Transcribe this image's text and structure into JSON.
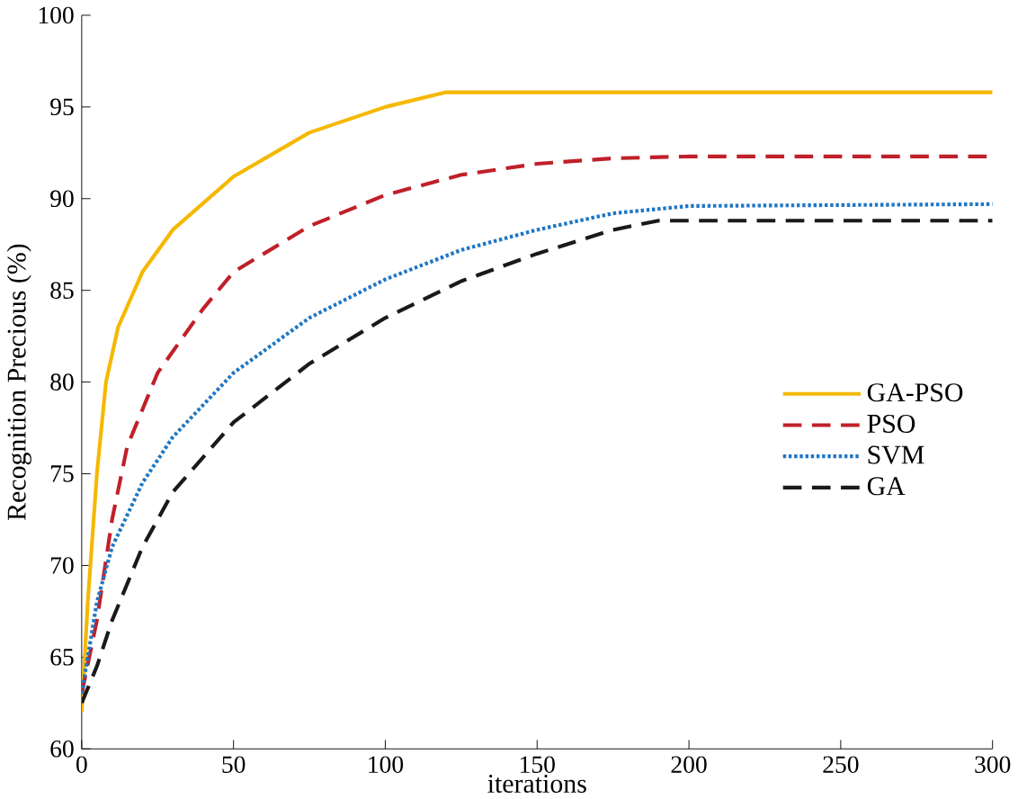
{
  "chart_data": {
    "type": "line",
    "xlabel": "iterations",
    "ylabel": "Recognition Precious (%)",
    "xlim": [
      0,
      300
    ],
    "ylim": [
      60,
      100
    ],
    "xticks": [
      0,
      50,
      100,
      150,
      200,
      250,
      300
    ],
    "yticks": [
      60,
      65,
      70,
      75,
      80,
      85,
      90,
      95,
      100
    ],
    "grid": false,
    "legend": "right",
    "series": [
      {
        "name": "GA-PSO",
        "color": "#f5b800",
        "line_style": "solid",
        "x": [
          0,
          2,
          5,
          8,
          12,
          20,
          30,
          50,
          75,
          100,
          120,
          300
        ],
        "values": [
          62,
          68,
          75,
          80,
          83,
          86,
          88.3,
          91.2,
          93.6,
          95,
          95.8,
          95.8
        ]
      },
      {
        "name": "PSO",
        "color": "#c0202a",
        "line_style": "dashed",
        "x": [
          0,
          5,
          10,
          15,
          25,
          40,
          50,
          75,
          100,
          125,
          150,
          175,
          200,
          300
        ],
        "values": [
          63,
          67,
          72.5,
          76.5,
          80.5,
          84,
          86,
          88.5,
          90.2,
          91.3,
          91.9,
          92.2,
          92.3,
          92.3
        ]
      },
      {
        "name": "SVM",
        "color": "#1f77c4",
        "line_style": "dotted",
        "x": [
          0,
          5,
          10,
          20,
          30,
          50,
          75,
          100,
          125,
          150,
          175,
          200,
          300
        ],
        "values": [
          63,
          68,
          71,
          74.5,
          77,
          80.5,
          83.5,
          85.6,
          87.2,
          88.3,
          89.2,
          89.6,
          89.7
        ]
      },
      {
        "name": "GA",
        "color": "#1a1a1a",
        "line_style": "dashed",
        "x": [
          0,
          5,
          10,
          20,
          30,
          50,
          75,
          100,
          125,
          150,
          175,
          190,
          300
        ],
        "values": [
          62.5,
          64.5,
          67,
          71,
          74,
          77.8,
          81,
          83.5,
          85.5,
          87,
          88.3,
          88.8,
          88.8
        ]
      }
    ]
  }
}
